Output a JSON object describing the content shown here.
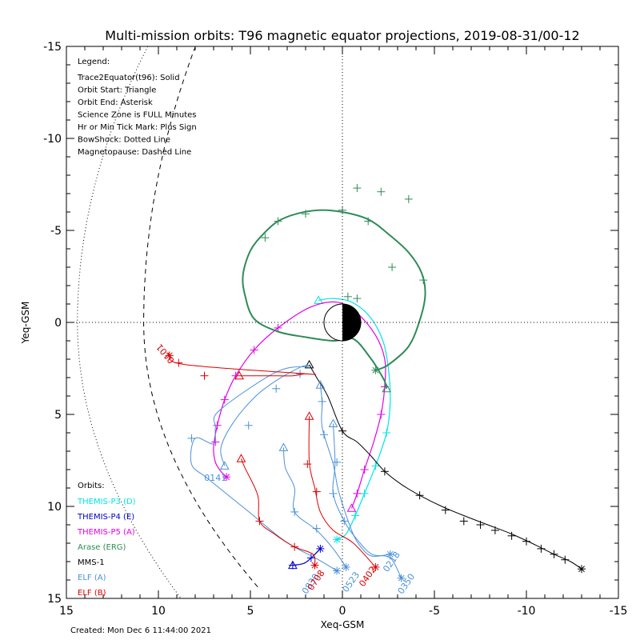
{
  "chart_data": {
    "type": "scatter",
    "title": "Multi-mission orbits: T96 magnetic equator projections, 2019-08-31/00-12",
    "xlabel": "Xeq-GSM",
    "ylabel": "Yeq-GSM",
    "xlim": [
      15,
      -15
    ],
    "ylim": [
      15,
      -15
    ],
    "x_ticks": [
      "15",
      "10",
      "5",
      "0",
      "-5",
      "-10",
      "-15"
    ],
    "y_ticks": [
      "-15",
      "-10",
      "-5",
      "0",
      "5",
      "10",
      "15"
    ],
    "grid": false,
    "footer": "Created: Mon Dec  6 11:44:00 2021",
    "legend_title": "Legend:",
    "legend_items": [
      "Trace2Equator(t96): Solid",
      "Orbit Start: Triangle",
      "Orbit End: Asterisk",
      "Science Zone is FULL Minutes",
      "Hr or Min Tick Mark: Plus Sign",
      "BowShock: Dotted Line",
      "Magnetopause: Dashed Line"
    ],
    "orbits_title": "Orbits:",
    "series": [
      {
        "name": "THEMIS-P3 (D)",
        "color": "#00e5e5",
        "width": 1.2,
        "start": "triangle",
        "end": "asterisk",
        "points": [
          [
            1.3,
            -1.2
          ],
          [
            0.5,
            -1.3
          ],
          [
            -0.5,
            -1.1
          ],
          [
            -1.5,
            -0.3
          ],
          [
            -2.2,
            1.0
          ],
          [
            -2.5,
            2.5
          ],
          [
            -2.6,
            4.3
          ],
          [
            -2.4,
            6.0
          ],
          [
            -1.8,
            7.8
          ],
          [
            -1.2,
            9.3
          ],
          [
            -0.7,
            10.5
          ],
          [
            -0.2,
            11.5
          ],
          [
            0.3,
            11.8
          ]
        ],
        "ticks": [
          [
            -2.4,
            6.0
          ],
          [
            -1.8,
            7.8
          ],
          [
            -1.2,
            9.3
          ],
          [
            -0.7,
            10.5
          ]
        ]
      },
      {
        "name": "THEMIS-P4 (E)",
        "color": "#0000cc",
        "width": 1.3,
        "start": "triangle",
        "end": "asterisk",
        "points": [
          [
            2.7,
            13.2
          ],
          [
            2.1,
            13.1
          ],
          [
            1.7,
            12.8
          ],
          [
            1.2,
            12.3
          ]
        ],
        "ticks": [
          [
            2.7,
            13.2
          ],
          [
            1.7,
            12.8
          ]
        ]
      },
      {
        "name": "THEMIS-P5 (A)",
        "color": "#e600e5",
        "width": 1.2,
        "start": "triangle",
        "end": "asterisk",
        "points": [
          [
            -0.5,
            10.1
          ],
          [
            -0.8,
            9.3
          ],
          [
            -1.2,
            8.0
          ],
          [
            -1.7,
            6.5
          ],
          [
            -2.1,
            5.0
          ],
          [
            -2.3,
            3.5
          ],
          [
            -2.3,
            2.0
          ],
          [
            -1.8,
            0.7
          ],
          [
            -0.8,
            -0.5
          ],
          [
            0.3,
            -1.1
          ],
          [
            1.8,
            -0.8
          ],
          [
            3.5,
            0.3
          ],
          [
            4.8,
            1.5
          ],
          [
            5.8,
            2.9
          ],
          [
            6.4,
            4.2
          ],
          [
            6.8,
            5.6
          ],
          [
            7.0,
            6.8
          ],
          [
            6.9,
            7.6
          ],
          [
            6.6,
            8.1
          ],
          [
            6.3,
            8.4
          ]
        ],
        "ticks": [
          [
            -2.3,
            3.5
          ],
          [
            -2.1,
            5.0
          ],
          [
            -1.2,
            8.0
          ],
          [
            -0.8,
            9.3
          ],
          [
            3.5,
            0.3
          ],
          [
            4.8,
            1.5
          ],
          [
            5.8,
            2.9
          ],
          [
            6.4,
            4.2
          ],
          [
            6.8,
            5.6
          ],
          [
            6.9,
            6.5
          ]
        ]
      },
      {
        "name": "Arase (ERG)",
        "color": "#2e8b57",
        "width": 2.0,
        "start": "triangle",
        "end": "asterisk",
        "points": [
          [
            -2.4,
            3.6
          ],
          [
            -2.3,
            3.2
          ],
          [
            -1.9,
            2.5
          ],
          [
            -1.5,
            1.9
          ],
          [
            -0.6,
            0.9
          ],
          [
            0.5,
            1.0
          ],
          [
            2.0,
            0.8
          ],
          [
            3.5,
            0.5
          ],
          [
            4.8,
            -0.2
          ],
          [
            5.3,
            -1.5
          ],
          [
            5.4,
            -2.6
          ],
          [
            5.0,
            -3.9
          ],
          [
            4.3,
            -4.8
          ],
          [
            3.5,
            -5.5
          ],
          [
            2.5,
            -5.9
          ],
          [
            1.3,
            -6.1
          ],
          [
            0,
            -6.0
          ],
          [
            -1.4,
            -5.6
          ],
          [
            -2.5,
            -4.8
          ],
          [
            -3.6,
            -3.8
          ],
          [
            -4.3,
            -2.7
          ],
          [
            -4.5,
            -1.5
          ],
          [
            -4.2,
            -0.1
          ],
          [
            -3.6,
            1.3
          ],
          [
            -2.5,
            2.3
          ],
          [
            -1.8,
            2.6
          ]
        ],
        "ticks": [
          [
            4.2,
            -4.6
          ],
          [
            3.5,
            -5.5
          ],
          [
            2.0,
            -5.9
          ],
          [
            0.0,
            -6.1
          ],
          [
            -1.4,
            -5.5
          ],
          [
            -2.7,
            -3.0
          ],
          [
            -4.4,
            -2.3
          ],
          [
            -3.6,
            -6.7
          ],
          [
            -2.1,
            -7.1
          ],
          [
            -0.8,
            -7.3
          ],
          [
            -0.3,
            -1.4
          ],
          [
            -0.8,
            -1.3
          ]
        ],
        "extra_points": [
          [
            -0.4,
            -1.3
          ],
          [
            -0.6,
            -1.3
          ]
        ]
      },
      {
        "name": "MMS-1",
        "color": "#000000",
        "width": 1.0,
        "start": "triangle",
        "end": "asterisk",
        "points": [
          [
            1.8,
            2.3
          ],
          [
            1.4,
            3.0
          ],
          [
            0.8,
            4.0
          ],
          [
            0.0,
            5.9
          ],
          [
            -0.8,
            6.5
          ],
          [
            -1.5,
            7.2
          ],
          [
            -2.3,
            8.1
          ],
          [
            -3.2,
            8.8
          ],
          [
            -4.2,
            9.4
          ],
          [
            -5.4,
            10.0
          ],
          [
            -6.6,
            10.5
          ],
          [
            -7.9,
            11.0
          ],
          [
            -9.2,
            11.5
          ],
          [
            -10.5,
            12.1
          ],
          [
            -11.5,
            12.6
          ],
          [
            -12.4,
            13.0
          ],
          [
            -13.0,
            13.4
          ]
        ],
        "ticks": [
          [
            0,
            5.9
          ],
          [
            -2.3,
            8.1
          ],
          [
            -4.2,
            9.4
          ],
          [
            -5.6,
            10.2
          ],
          [
            -6.6,
            10.8
          ],
          [
            -7.5,
            11.0
          ],
          [
            -8.3,
            11.3
          ],
          [
            -9.2,
            11.6
          ],
          [
            -10.0,
            11.9
          ],
          [
            -10.8,
            12.3
          ],
          [
            -11.5,
            12.6
          ],
          [
            -12.1,
            12.9
          ]
        ]
      },
      {
        "name": "ELF (A)",
        "color": "#4a90d9",
        "width": 1.0,
        "start": "triangle",
        "end": "asterisk",
        "curves": [
          {
            "points": [
              [
                6.4,
                7.8
              ],
              [
                6.6,
                6.8
              ],
              [
                5.9,
                5.4
              ],
              [
                4.7,
                4.0
              ],
              [
                3.5,
                3.1
              ],
              [
                2.2,
                2.4
              ],
              [
                1.9,
                2.4
              ],
              [
                3.6,
                2.7
              ],
              [
                6.7,
                4.8
              ],
              [
                6.9,
                5.7
              ],
              [
                7.0,
                6.6
              ],
              [
                8.0,
                6.3
              ],
              [
                8.2,
                7.7
              ],
              [
                7.3,
                8.5
              ],
              [
                5.2,
                10.2
              ],
              [
                3.1,
                11.9
              ],
              [
                1.3,
                12.9
              ],
              [
                0.3,
                13.5
              ]
            ],
            "ticks": [
              [
                5.1,
                5.6
              ],
              [
                3.6,
                3.6
              ],
              [
                2.3,
                2.8
              ],
              [
                8.2,
                6.3
              ]
            ]
          },
          {
            "points": [
              [
                3.2,
                6.8
              ],
              [
                3.1,
                7.9
              ],
              [
                2.6,
                9.0
              ],
              [
                2.6,
                10.3
              ],
              [
                1.4,
                11.3
              ],
              [
                0.5,
                12.3
              ],
              [
                -0.2,
                13.3
              ]
            ],
            "ticks": [
              [
                2.6,
                10.3
              ],
              [
                1.4,
                11.2
              ]
            ]
          },
          {
            "points": [
              [
                1.2,
                3.4
              ],
              [
                1.1,
                4.4
              ],
              [
                1.1,
                5.7
              ],
              [
                0.5,
                7.7
              ],
              [
                0.2,
                9.2
              ],
              [
                -0.5,
                11.3
              ],
              [
                -1.0,
                12.2
              ],
              [
                -1.6,
                12.7
              ],
              [
                -2.6,
                12.6
              ]
            ],
            "ticks": [
              [
                1.1,
                4.3
              ],
              [
                1.0,
                6.1
              ],
              [
                0.3,
                7.6
              ]
            ]
          },
          {
            "points": [
              [
                0.5,
                5.5
              ],
              [
                0.4,
                7.7
              ],
              [
                0.5,
                9.3
              ],
              [
                -0.1,
                10.8
              ],
              [
                -0.8,
                11.8
              ],
              [
                -1.6,
                12.6
              ],
              [
                -2.6,
                12.8
              ],
              [
                -3.2,
                13.9
              ]
            ],
            "ticks": [
              [
                0.5,
                9.3
              ],
              [
                -0.1,
                10.8
              ]
            ]
          }
        ],
        "labels": [
          {
            "text": "0830",
            "x": 1.6,
            "y": 14.3,
            "rot": -55
          },
          {
            "text": "0523",
            "x": -0.6,
            "y": 14.2,
            "rot": -55
          },
          {
            "text": "0218",
            "x": -2.8,
            "y": 13.1,
            "rot": -55
          },
          {
            "text": "0350",
            "x": -3.6,
            "y": 14.3,
            "rot": -55
          },
          {
            "text": "0141",
            "x": 6.9,
            "y": 8.6,
            "rot": 0
          }
        ]
      },
      {
        "name": "ELF (B)",
        "color": "#dd0000",
        "width": 1.0,
        "start": "triangle",
        "end": "asterisk",
        "curves": [
          {
            "points": [
              [
                5.5,
                7.4
              ],
              [
                5.3,
                7.9
              ],
              [
                4.6,
                9.4
              ],
              [
                4.5,
                10.8
              ],
              [
                3.7,
                11.5
              ],
              [
                2.6,
                12.2
              ],
              [
                1.6,
                12.6
              ],
              [
                1.5,
                13.2
              ]
            ],
            "ticks": [
              [
                4.5,
                10.8
              ],
              [
                2.6,
                12.2
              ]
            ]
          },
          {
            "points": [
              [
                1.8,
                5.1
              ],
              [
                1.8,
                7.6
              ],
              [
                1.5,
                9.0
              ],
              [
                1.2,
                10.3
              ],
              [
                0.5,
                11.3
              ],
              [
                -0.6,
                12.0
              ],
              [
                -1.8,
                13.3
              ]
            ],
            "ticks": [
              [
                1.9,
                7.7
              ],
              [
                1.4,
                9.2
              ]
            ]
          },
          {
            "points": [
              [
                5.6,
                2.9
              ],
              [
                5.0,
                2.9
              ],
              [
                4.0,
                2.9
              ],
              [
                2.7,
                2.9
              ],
              [
                2.1,
                2.8
              ],
              [
                1.9,
                2.8
              ],
              [
                8.5,
                2.3
              ],
              [
                9.4,
                1.8
              ]
            ],
            "ticks": [
              [
                7.5,
                2.9
              ],
              [
                8.9,
                2.2
              ]
            ]
          }
        ],
        "labels": [
          {
            "text": "0708",
            "x": 1.3,
            "y": 14.1,
            "rot": -55
          },
          {
            "text": "0402",
            "x": -1.5,
            "y": 13.9,
            "rot": -55
          },
          {
            "text": "0101",
            "x": 9.5,
            "y": 1.6,
            "rot": 230
          }
        ]
      }
    ],
    "magnetopause": {
      "style": "dashed",
      "color": "#000000"
    },
    "bowshock": {
      "style": "dotted",
      "color": "#000000"
    }
  }
}
